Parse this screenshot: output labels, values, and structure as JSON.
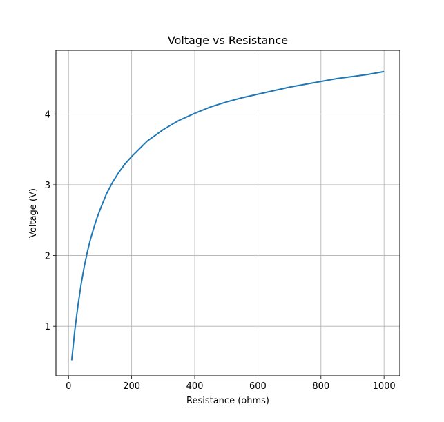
{
  "chart_data": {
    "type": "line",
    "title": "Voltage vs Resistance",
    "xlabel": "Resistance (ohms)",
    "ylabel": "Voltage (V)",
    "xlim": [
      -40,
      1050
    ],
    "ylim": [
      0.3,
      4.9
    ],
    "xticks": [
      0,
      200,
      400,
      600,
      800,
      1000
    ],
    "yticks": [
      1,
      2,
      3,
      4
    ],
    "grid": true,
    "line_color": "#1f77b4",
    "series": [
      {
        "x": [
          10,
          20,
          30,
          40,
          50,
          60,
          70,
          80,
          90,
          100,
          120,
          140,
          160,
          180,
          200,
          225,
          250,
          275,
          300,
          350,
          400,
          450,
          500,
          550,
          600,
          650,
          700,
          750,
          800,
          850,
          900,
          950,
          1000
        ],
        "y": [
          0.52,
          0.95,
          1.3,
          1.6,
          1.85,
          2.06,
          2.24,
          2.39,
          2.53,
          2.65,
          2.87,
          3.04,
          3.18,
          3.3,
          3.4,
          3.51,
          3.62,
          3.7,
          3.78,
          3.91,
          4.01,
          4.1,
          4.17,
          4.23,
          4.28,
          4.33,
          4.38,
          4.42,
          4.46,
          4.5,
          4.53,
          4.56,
          4.6
        ]
      }
    ]
  }
}
